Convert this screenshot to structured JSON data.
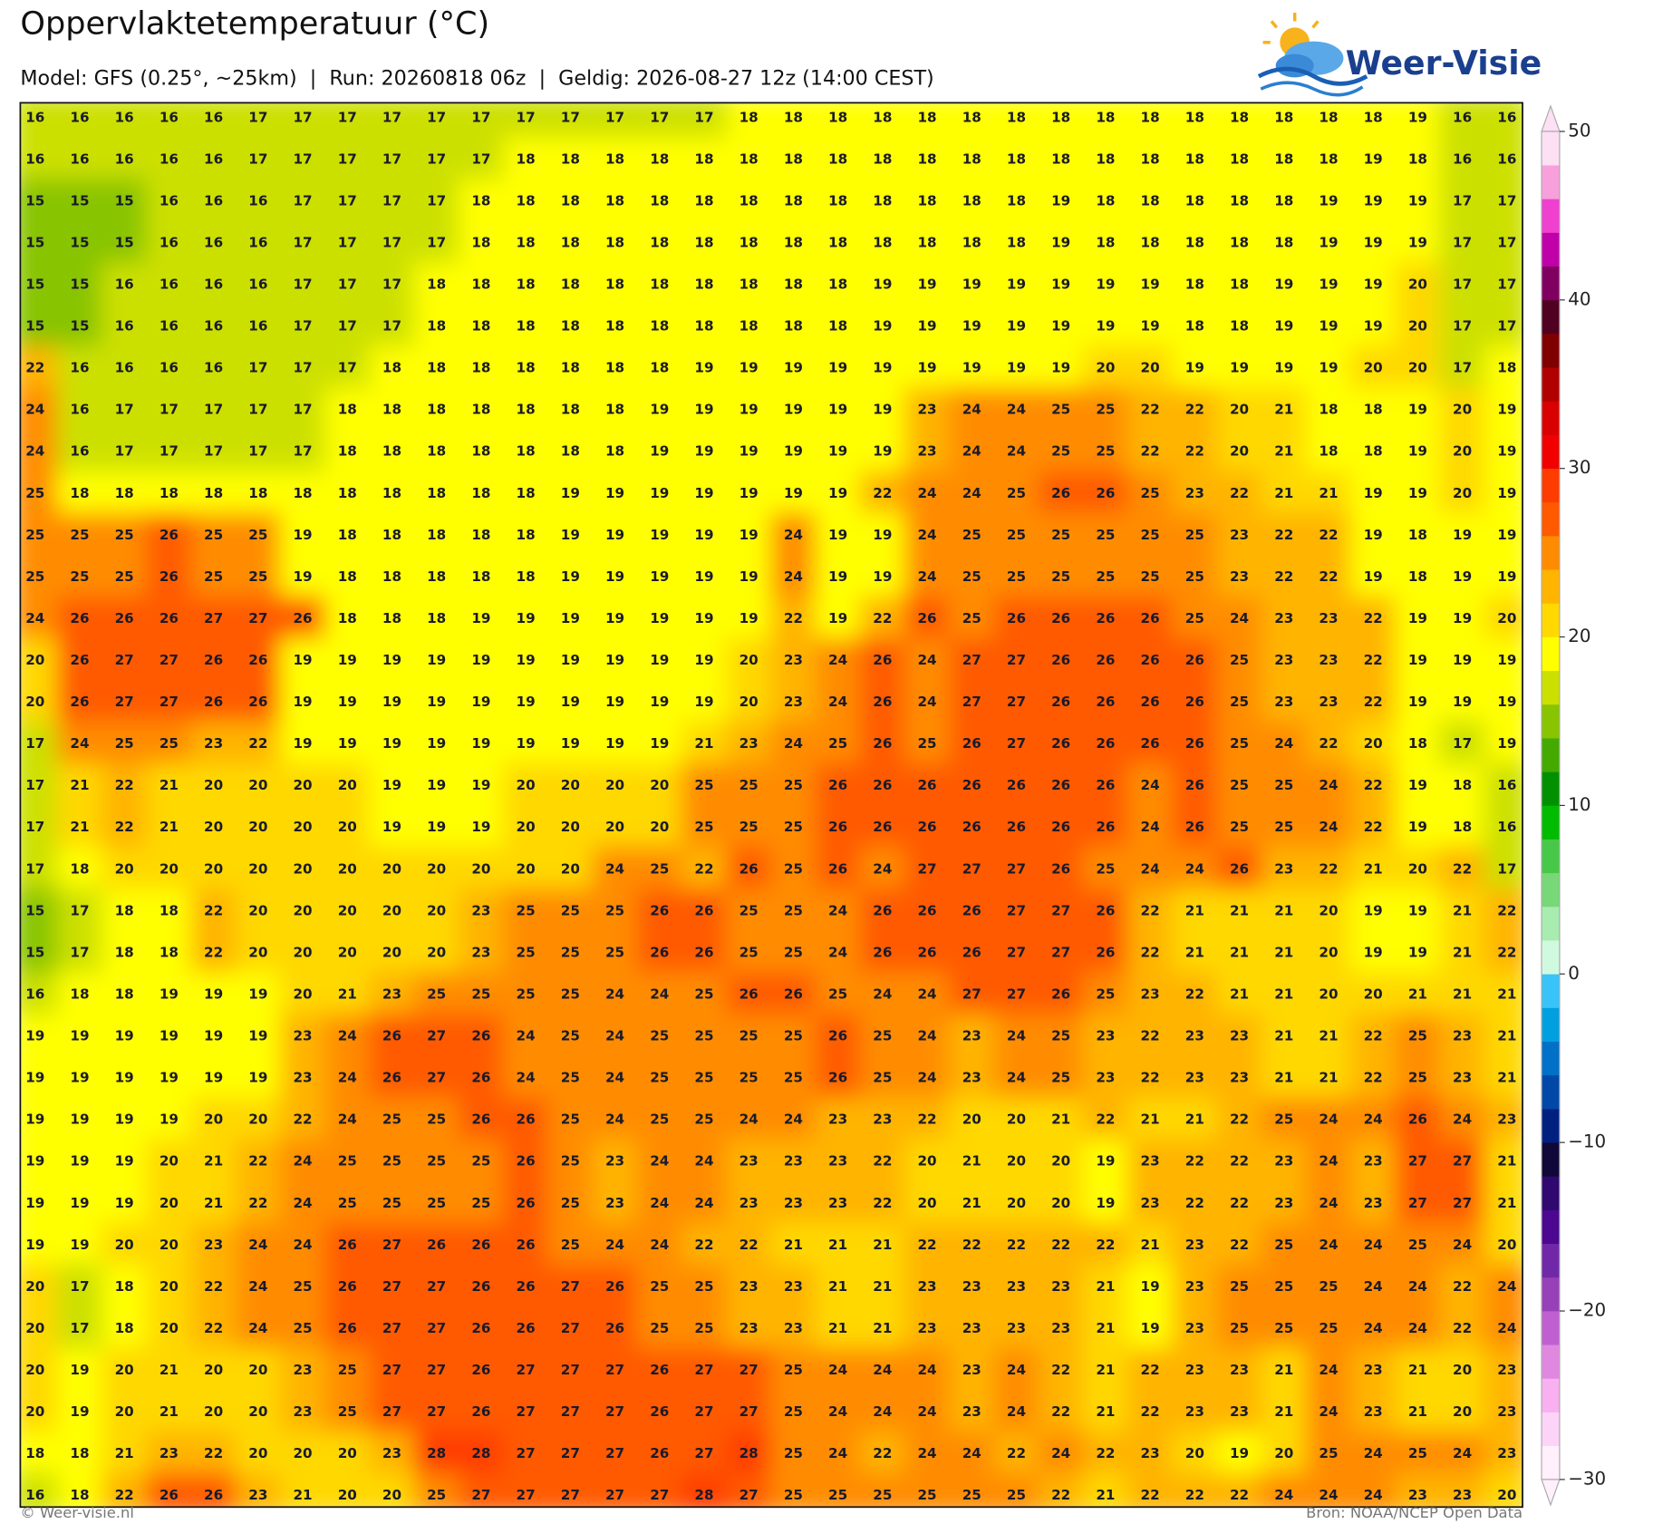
{
  "header": {
    "title": "Oppervlaktetemperatuur (°C)",
    "subtitle": "Model: GFS (0.25°, ~25km)  |  Run: 20260818 06z  |  Geldig: 2026-08-27 12z (14:00 CEST)"
  },
  "logo": "Weer-Visie",
  "map": {
    "rows": [
      [
        16,
        16,
        16,
        16,
        16,
        17,
        17,
        17,
        17,
        17,
        17,
        17,
        17,
        17,
        17,
        17,
        18,
        18,
        18,
        18,
        18,
        18,
        18,
        18,
        18,
        18,
        18,
        18,
        18,
        18,
        18,
        19,
        16,
        16
      ],
      [
        16,
        16,
        16,
        16,
        16,
        17,
        17,
        17,
        17,
        17,
        17,
        18,
        18,
        18,
        18,
        18,
        18,
        18,
        18,
        18,
        18,
        18,
        18,
        18,
        18,
        18,
        18,
        18,
        18,
        18,
        19,
        18,
        16,
        16
      ],
      [
        15,
        15,
        15,
        16,
        16,
        16,
        17,
        17,
        17,
        17,
        18,
        18,
        18,
        18,
        18,
        18,
        18,
        18,
        18,
        18,
        18,
        18,
        18,
        19,
        18,
        18,
        18,
        18,
        18,
        19,
        19,
        19,
        17,
        17
      ],
      [
        15,
        15,
        15,
        16,
        16,
        16,
        17,
        17,
        17,
        17,
        18,
        18,
        18,
        18,
        18,
        18,
        18,
        18,
        18,
        18,
        18,
        18,
        18,
        19,
        18,
        18,
        18,
        18,
        18,
        19,
        19,
        19,
        17,
        17
      ],
      [
        15,
        15,
        16,
        16,
        16,
        16,
        17,
        17,
        17,
        18,
        18,
        18,
        18,
        18,
        18,
        18,
        18,
        18,
        18,
        19,
        19,
        19,
        19,
        19,
        19,
        19,
        18,
        18,
        19,
        19,
        19,
        20,
        17,
        17
      ],
      [
        15,
        15,
        16,
        16,
        16,
        16,
        17,
        17,
        17,
        18,
        18,
        18,
        18,
        18,
        18,
        18,
        18,
        18,
        18,
        19,
        19,
        19,
        19,
        19,
        19,
        19,
        18,
        18,
        19,
        19,
        19,
        20,
        17,
        17
      ],
      [
        22,
        16,
        16,
        16,
        16,
        17,
        17,
        17,
        18,
        18,
        18,
        18,
        18,
        18,
        18,
        19,
        19,
        19,
        19,
        19,
        19,
        19,
        19,
        19,
        20,
        20,
        19,
        19,
        19,
        19,
        20,
        20,
        17,
        18
      ],
      [
        24,
        16,
        17,
        17,
        17,
        17,
        17,
        18,
        18,
        18,
        18,
        18,
        18,
        18,
        19,
        19,
        19,
        19,
        19,
        19,
        23,
        24,
        24,
        25,
        25,
        22,
        22,
        20,
        21,
        18,
        18,
        19,
        20,
        19
      ],
      [
        24,
        16,
        17,
        17,
        17,
        17,
        17,
        18,
        18,
        18,
        18,
        18,
        18,
        18,
        19,
        19,
        19,
        19,
        19,
        19,
        23,
        24,
        24,
        25,
        25,
        22,
        22,
        20,
        21,
        18,
        18,
        19,
        20,
        19
      ],
      [
        25,
        18,
        18,
        18,
        18,
        18,
        18,
        18,
        18,
        18,
        18,
        18,
        19,
        19,
        19,
        19,
        19,
        19,
        19,
        22,
        24,
        24,
        25,
        26,
        26,
        25,
        23,
        22,
        21,
        21,
        19,
        19,
        20,
        19
      ],
      [
        25,
        25,
        25,
        26,
        25,
        25,
        19,
        18,
        18,
        18,
        18,
        18,
        19,
        19,
        19,
        19,
        19,
        24,
        19,
        19,
        24,
        25,
        25,
        25,
        25,
        25,
        25,
        23,
        22,
        22,
        19,
        18,
        19,
        19
      ],
      [
        25,
        25,
        25,
        26,
        25,
        25,
        19,
        18,
        18,
        18,
        18,
        18,
        19,
        19,
        19,
        19,
        19,
        24,
        19,
        19,
        24,
        25,
        25,
        25,
        25,
        25,
        25,
        23,
        22,
        22,
        19,
        18,
        19,
        19
      ],
      [
        24,
        26,
        26,
        26,
        27,
        27,
        26,
        18,
        18,
        18,
        19,
        19,
        19,
        19,
        19,
        19,
        19,
        22,
        19,
        22,
        26,
        25,
        26,
        26,
        26,
        26,
        25,
        24,
        23,
        23,
        22,
        19,
        19,
        20
      ],
      [
        20,
        26,
        27,
        27,
        26,
        26,
        19,
        19,
        19,
        19,
        19,
        19,
        19,
        19,
        19,
        19,
        20,
        23,
        24,
        26,
        24,
        27,
        27,
        26,
        26,
        26,
        26,
        25,
        23,
        23,
        22,
        19,
        19,
        19
      ],
      [
        20,
        26,
        27,
        27,
        26,
        26,
        19,
        19,
        19,
        19,
        19,
        19,
        19,
        19,
        19,
        19,
        20,
        23,
        24,
        26,
        24,
        27,
        27,
        26,
        26,
        26,
        26,
        25,
        23,
        23,
        22,
        19,
        19,
        19
      ],
      [
        17,
        24,
        25,
        25,
        23,
        22,
        19,
        19,
        19,
        19,
        19,
        19,
        19,
        19,
        19,
        21,
        23,
        24,
        25,
        26,
        25,
        26,
        27,
        26,
        26,
        26,
        26,
        25,
        24,
        22,
        20,
        18,
        17,
        19
      ],
      [
        17,
        21,
        22,
        21,
        20,
        20,
        20,
        20,
        19,
        19,
        19,
        20,
        20,
        20,
        20,
        25,
        25,
        25,
        26,
        26,
        26,
        26,
        26,
        26,
        26,
        24,
        26,
        25,
        25,
        24,
        22,
        19,
        18,
        16
      ],
      [
        17,
        21,
        22,
        21,
        20,
        20,
        20,
        20,
        19,
        19,
        19,
        20,
        20,
        20,
        20,
        25,
        25,
        25,
        26,
        26,
        26,
        26,
        26,
        26,
        26,
        24,
        26,
        25,
        25,
        24,
        22,
        19,
        18,
        16
      ],
      [
        17,
        18,
        20,
        20,
        20,
        20,
        20,
        20,
        20,
        20,
        20,
        20,
        20,
        24,
        25,
        22,
        26,
        25,
        26,
        24,
        27,
        27,
        27,
        26,
        25,
        24,
        24,
        26,
        23,
        22,
        21,
        20,
        22,
        17
      ],
      [
        15,
        17,
        18,
        18,
        22,
        20,
        20,
        20,
        20,
        20,
        23,
        25,
        25,
        25,
        26,
        26,
        25,
        25,
        24,
        26,
        26,
        26,
        27,
        27,
        26,
        22,
        21,
        21,
        21,
        20,
        19,
        19,
        21,
        22
      ],
      [
        15,
        17,
        18,
        18,
        22,
        20,
        20,
        20,
        20,
        20,
        23,
        25,
        25,
        25,
        26,
        26,
        25,
        25,
        24,
        26,
        26,
        26,
        27,
        27,
        26,
        22,
        21,
        21,
        21,
        20,
        19,
        19,
        21,
        22
      ],
      [
        16,
        18,
        18,
        19,
        19,
        19,
        20,
        21,
        23,
        25,
        25,
        25,
        25,
        24,
        24,
        25,
        26,
        26,
        25,
        24,
        24,
        27,
        27,
        26,
        25,
        23,
        22,
        21,
        21,
        20,
        20,
        21,
        21,
        21
      ],
      [
        19,
        19,
        19,
        19,
        19,
        19,
        23,
        24,
        26,
        27,
        26,
        24,
        25,
        24,
        25,
        25,
        25,
        25,
        26,
        25,
        24,
        23,
        24,
        25,
        23,
        22,
        23,
        23,
        21,
        21,
        22,
        25,
        23,
        21
      ],
      [
        19,
        19,
        19,
        19,
        19,
        19,
        23,
        24,
        26,
        27,
        26,
        24,
        25,
        24,
        25,
        25,
        25,
        25,
        26,
        25,
        24,
        23,
        24,
        25,
        23,
        22,
        23,
        23,
        21,
        21,
        22,
        25,
        23,
        21
      ],
      [
        19,
        19,
        19,
        19,
        20,
        20,
        22,
        24,
        25,
        25,
        26,
        26,
        25,
        24,
        25,
        25,
        24,
        24,
        23,
        23,
        22,
        20,
        20,
        21,
        22,
        21,
        21,
        22,
        25,
        24,
        24,
        26,
        24,
        23
      ],
      [
        19,
        19,
        19,
        20,
        21,
        22,
        24,
        25,
        25,
        25,
        25,
        26,
        25,
        23,
        24,
        24,
        23,
        23,
        23,
        22,
        20,
        21,
        20,
        20,
        19,
        23,
        22,
        22,
        23,
        24,
        23,
        27,
        27,
        21
      ],
      [
        19,
        19,
        19,
        20,
        21,
        22,
        24,
        25,
        25,
        25,
        25,
        26,
        25,
        23,
        24,
        24,
        23,
        23,
        23,
        22,
        20,
        21,
        20,
        20,
        19,
        23,
        22,
        22,
        23,
        24,
        23,
        27,
        27,
        21
      ],
      [
        19,
        19,
        20,
        20,
        23,
        24,
        24,
        26,
        27,
        26,
        26,
        26,
        25,
        24,
        24,
        22,
        22,
        21,
        21,
        21,
        22,
        22,
        22,
        22,
        22,
        21,
        23,
        22,
        25,
        24,
        24,
        25,
        24,
        20
      ],
      [
        20,
        17,
        18,
        20,
        22,
        24,
        25,
        26,
        27,
        27,
        26,
        26,
        27,
        26,
        25,
        25,
        23,
        23,
        21,
        21,
        23,
        23,
        23,
        23,
        21,
        19,
        23,
        25,
        25,
        25,
        24,
        24,
        22,
        24
      ],
      [
        20,
        17,
        18,
        20,
        22,
        24,
        25,
        26,
        27,
        27,
        26,
        26,
        27,
        26,
        25,
        25,
        23,
        23,
        21,
        21,
        23,
        23,
        23,
        23,
        21,
        19,
        23,
        25,
        25,
        25,
        24,
        24,
        22,
        24
      ],
      [
        20,
        19,
        20,
        21,
        20,
        20,
        23,
        25,
        27,
        27,
        26,
        27,
        27,
        27,
        26,
        27,
        27,
        25,
        24,
        24,
        24,
        23,
        24,
        22,
        21,
        22,
        23,
        23,
        21,
        24,
        23,
        21,
        20,
        23
      ],
      [
        20,
        19,
        20,
        21,
        20,
        20,
        23,
        25,
        27,
        27,
        26,
        27,
        27,
        27,
        26,
        27,
        27,
        25,
        24,
        24,
        24,
        23,
        24,
        22,
        21,
        22,
        23,
        23,
        21,
        24,
        23,
        21,
        20,
        23
      ],
      [
        18,
        18,
        21,
        23,
        22,
        20,
        20,
        20,
        23,
        28,
        28,
        27,
        27,
        27,
        26,
        27,
        28,
        25,
        24,
        22,
        24,
        24,
        22,
        24,
        22,
        23,
        20,
        19,
        20,
        25,
        24,
        25,
        24,
        23
      ],
      [
        16,
        18,
        22,
        26,
        26,
        23,
        21,
        20,
        20,
        25,
        27,
        27,
        27,
        27,
        27,
        28,
        27,
        25,
        25,
        25,
        25,
        25,
        25,
        22,
        21,
        22,
        22,
        22,
        24,
        24,
        24,
        23,
        23,
        20
      ]
    ]
  },
  "colorbar": {
    "range": [
      -30,
      50
    ],
    "ticks": [
      {
        "value": -30,
        "label": "−30"
      },
      {
        "value": -20,
        "label": "−20"
      },
      {
        "value": -10,
        "label": "−10"
      },
      0,
      10,
      20,
      30,
      40,
      50
    ],
    "colors": [
      "#fff0fc",
      "#fcd4f8",
      "#f8b0f0",
      "#e088e0",
      "#c060d0",
      "#9840b8",
      "#7028a8",
      "#4c0890",
      "#300870",
      "#100838",
      "#002080",
      "#0048a8",
      "#0070c8",
      "#00a0e0",
      "#38c4f8",
      "#d0fae0",
      "#a8ecb0",
      "#78d878",
      "#48c848",
      "#00bb00",
      "#009000",
      "#44aa00",
      "#88c400",
      "#cce000",
      "#ffff00",
      "#ffd800",
      "#ffb400",
      "#ff8c00",
      "#ff5a00",
      "#ff3c00",
      "#f00000",
      "#d80000",
      "#b00000",
      "#800000",
      "#500020",
      "#800060",
      "#c000a8",
      "#f040d0",
      "#f8a0dc",
      "#fde0f4"
    ]
  },
  "footer": {
    "left": "© Weer-visie.nl",
    "right": "Bron: NOAA/NCEP Open Data"
  }
}
